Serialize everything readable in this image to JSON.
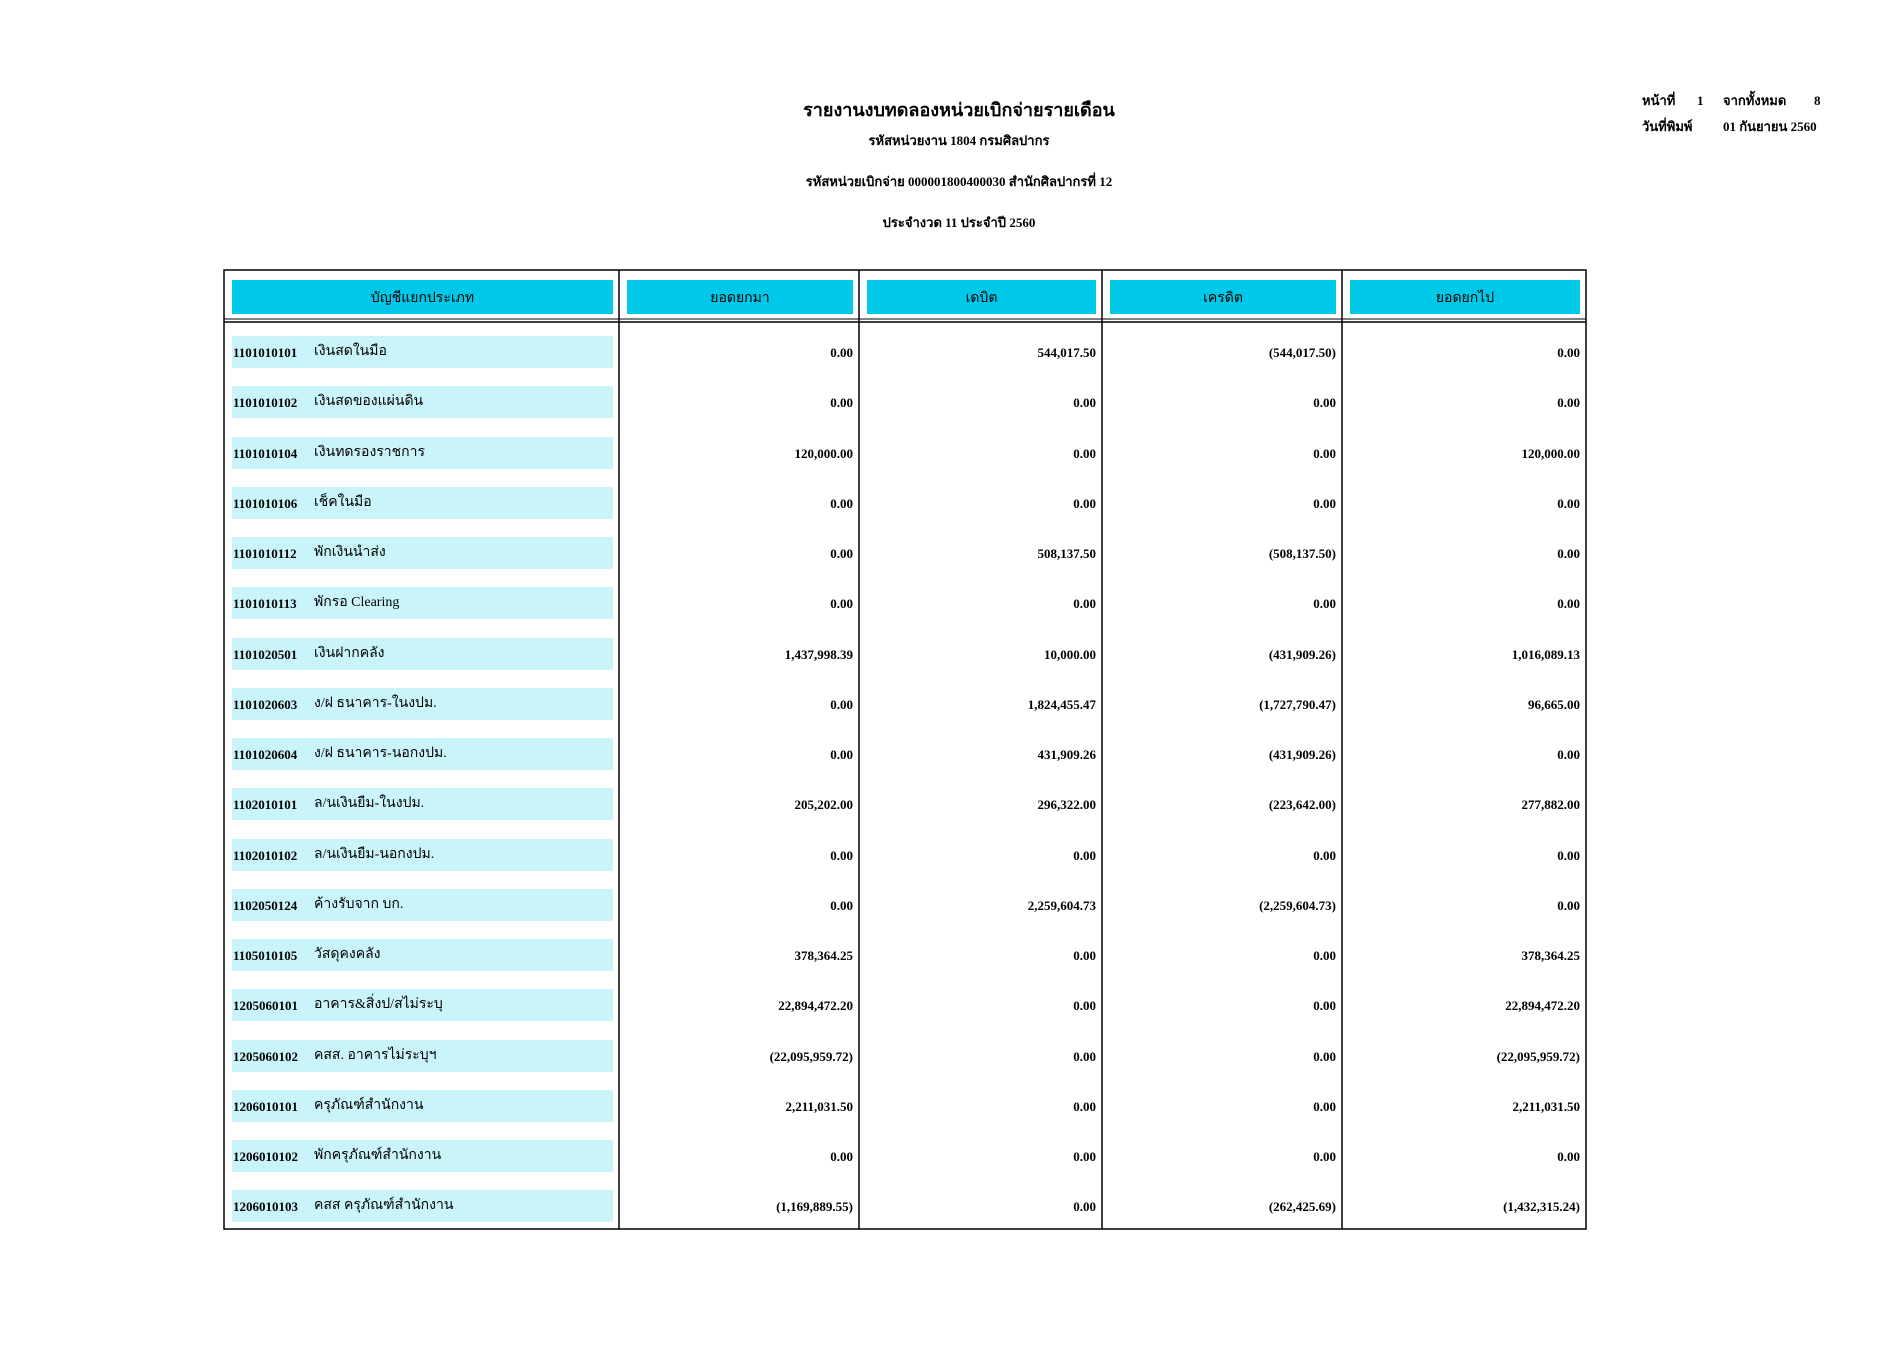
{
  "header": {
    "title": "รายงานงบทดลองหน่วยเบิกจ่ายรายเดือน",
    "agency": "รหัสหน่วยงาน 1804 กรมศิลปากร",
    "unit": "รหัสหน่วยเบิกจ่าย 000001800400030 สำนักศิลปากรที่ 12",
    "period": "ประจำงวด 11 ประจำปี 2560",
    "page_label": "หน้าที่",
    "page": "1",
    "total_label": "จากทั้งหมด",
    "total": "8",
    "print_date_label": "วันที่พิมพ์",
    "print_date": "01 กันยายน 2560"
  },
  "table": {
    "columns": [
      "บัญชีแยกประเภท",
      "ยอดยกมา",
      "เดบิต",
      "เครดิต",
      "ยอดยกไป"
    ],
    "rows": [
      [
        "1101010101",
        "เงินสดในมือ",
        "0.00",
        "544,017.50",
        "(544,017.50)",
        "0.00"
      ],
      [
        "1101010102",
        "เงินสดของแผ่นดิน",
        "0.00",
        "0.00",
        "0.00",
        "0.00"
      ],
      [
        "1101010104",
        "เงินทดรองราชการ",
        "120,000.00",
        "0.00",
        "0.00",
        "120,000.00"
      ],
      [
        "1101010106",
        "เช็คในมือ",
        "0.00",
        "0.00",
        "0.00",
        "0.00"
      ],
      [
        "1101010112",
        "พักเงินนำส่ง",
        "0.00",
        "508,137.50",
        "(508,137.50)",
        "0.00"
      ],
      [
        "1101010113",
        "พักรอ Clearing",
        "0.00",
        "0.00",
        "0.00",
        "0.00"
      ],
      [
        "1101020501",
        "เงินฝากคลัง",
        "1,437,998.39",
        "10,000.00",
        "(431,909.26)",
        "1,016,089.13"
      ],
      [
        "1101020603",
        "ง/ฝ ธนาคาร-ในงปม.",
        "0.00",
        "1,824,455.47",
        "(1,727,790.47)",
        "96,665.00"
      ],
      [
        "1101020604",
        "ง/ฝ ธนาคาร-นอกงปม.",
        "0.00",
        "431,909.26",
        "(431,909.26)",
        "0.00"
      ],
      [
        "1102010101",
        "ล/นเงินยืม-ในงปม.",
        "205,202.00",
        "296,322.00",
        "(223,642.00)",
        "277,882.00"
      ],
      [
        "1102010102",
        "ล/นเงินยืม-นอกงปม.",
        "0.00",
        "0.00",
        "0.00",
        "0.00"
      ],
      [
        "1102050124",
        "ค้างรับจาก บก.",
        "0.00",
        "2,259,604.73",
        "(2,259,604.73)",
        "0.00"
      ],
      [
        "1105010105",
        "วัสดุคงคลัง",
        "378,364.25",
        "0.00",
        "0.00",
        "378,364.25"
      ],
      [
        "1205060101",
        "อาคาร&สิ่งป/สไม่ระบุ",
        "22,894,472.20",
        "0.00",
        "0.00",
        "22,894,472.20"
      ],
      [
        "1205060102",
        "คสส. อาคารไม่ระบุฯ",
        "(22,095,959.72)",
        "0.00",
        "0.00",
        "(22,095,959.72)"
      ],
      [
        "1206010101",
        "ครุภัณฑ์สำนักงาน",
        "2,211,031.50",
        "0.00",
        "0.00",
        "2,211,031.50"
      ],
      [
        "1206010102",
        "พักครุภัณฑ์สำนักงาน",
        "0.00",
        "0.00",
        "0.00",
        "0.00"
      ],
      [
        "1206010103",
        "คสส ครุภัณฑ์สำนักงาน",
        "(1,169,889.55)",
        "0.00",
        "(262,425.69)",
        "(1,432,315.24)"
      ]
    ]
  }
}
